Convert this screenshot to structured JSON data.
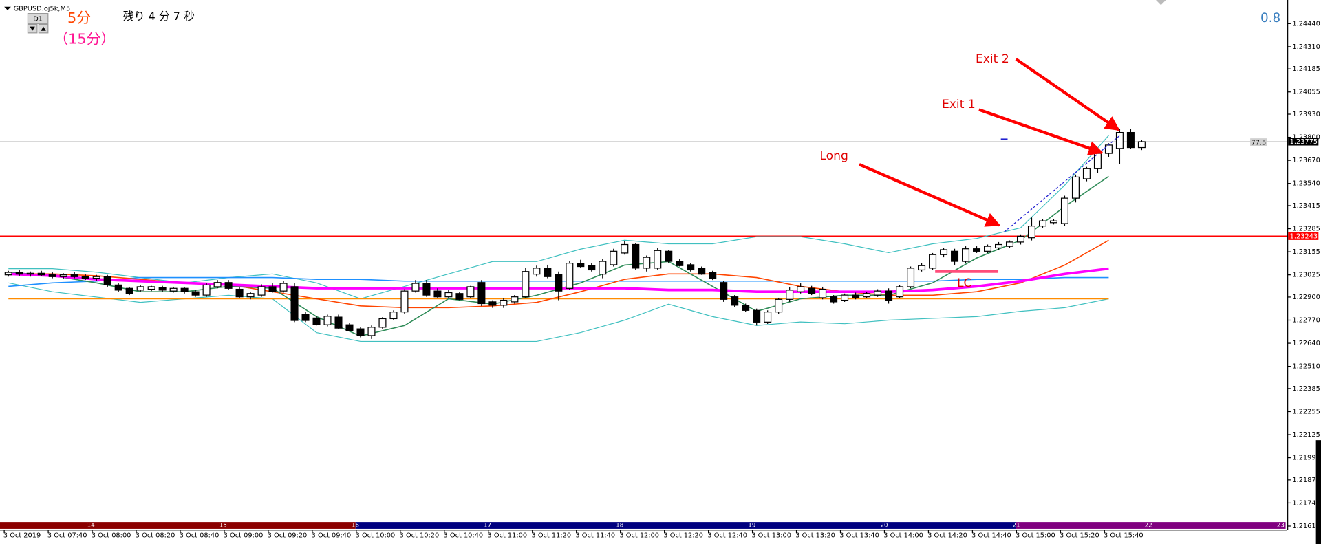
{
  "header": {
    "symbol": "GBPUSD.oj5k,M5",
    "period_button": "D1",
    "timeframe": "5分",
    "timeframe_sub": "（15分）",
    "countdown": "残り 4 分 7 秒",
    "spread": "0.8",
    "level_label": "77.5"
  },
  "chart_data": {
    "type": "candlestick",
    "categories": [
      "3 Oct 2019",
      null,
      null,
      null,
      "3 Oct 07:40",
      null,
      null,
      null,
      "3 Oct 08:00",
      null,
      null,
      null,
      "3 Oct 08:20",
      null,
      null,
      null,
      "3 Oct 08:40",
      null,
      null,
      null,
      "3 Oct 09:00",
      null,
      null,
      null,
      "3 Oct 09:20",
      null,
      null,
      null,
      "3 Oct 09:40",
      null,
      null,
      null,
      "3 Oct 10:00",
      null,
      null,
      null,
      "3 Oct 10:20",
      null,
      null,
      null,
      "3 Oct 10:40",
      null,
      null,
      null,
      "3 Oct 11:00",
      null,
      null,
      null,
      "3 Oct 11:20",
      null,
      null,
      null,
      "3 Oct 11:40",
      null,
      null,
      null,
      "3 Oct 12:00",
      null,
      null,
      null,
      "3 Oct 12:20",
      null,
      null,
      null,
      "3 Oct 12:40",
      null,
      null,
      null,
      "3 Oct 13:00",
      null,
      null,
      null,
      "3 Oct 13:20",
      null,
      null,
      null,
      "3 Oct 13:40",
      null,
      null,
      null,
      "3 Oct 14:00",
      null,
      null,
      null,
      "3 Oct 14:20",
      null,
      null,
      null,
      "3 Oct 14:40",
      null,
      null,
      null,
      "3 Oct 15:00",
      null,
      null,
      null,
      "3 Oct 15:20",
      null,
      null,
      null,
      "3 Oct 15:40",
      null,
      null,
      null
    ],
    "values": [
      [
        1.23025,
        1.23048,
        1.23015,
        1.23039
      ],
      [
        1.23039,
        1.23053,
        1.2302,
        1.23029
      ],
      [
        1.23029,
        1.23044,
        1.23015,
        1.23034
      ],
      [
        1.23034,
        1.23048,
        1.2302,
        1.23025
      ],
      [
        1.23025,
        1.23039,
        1.23006,
        1.23015
      ],
      [
        1.23015,
        1.23034,
        1.23001,
        1.23025
      ],
      [
        1.23025,
        1.23039,
        1.23006,
        1.23015
      ],
      [
        1.23015,
        1.23029,
        1.22996,
        1.23006
      ],
      [
        1.23006,
        1.23025,
        1.22991,
        1.23015
      ],
      [
        1.23015,
        1.23025,
        1.22958,
        1.22968
      ],
      [
        1.22968,
        1.22977,
        1.2293,
        1.22939
      ],
      [
        1.22949,
        1.22958,
        1.22911,
        1.2292
      ],
      [
        1.22939,
        1.22968,
        1.2293,
        1.22958
      ],
      [
        1.22944,
        1.22963,
        1.22934,
        1.22958
      ],
      [
        1.22953,
        1.22963,
        1.2293,
        1.22939
      ],
      [
        1.22934,
        1.22958,
        1.22925,
        1.22949
      ],
      [
        1.22949,
        1.22958,
        1.2292,
        1.2293
      ],
      [
        1.2293,
        1.22939,
        1.22901,
        1.22911
      ],
      [
        1.22911,
        1.22977,
        1.22901,
        1.22968
      ],
      [
        1.22958,
        1.22996,
        1.22949,
        1.22982
      ],
      [
        1.22982,
        1.22996,
        1.22939,
        1.22949
      ],
      [
        1.22944,
        1.22958,
        1.22892,
        1.22901
      ],
      [
        1.22901,
        1.2293,
        1.22887,
        1.2292
      ],
      [
        1.22911,
        1.22972,
        1.22901,
        1.22958
      ],
      [
        1.22958,
        1.22977,
        1.22925,
        1.2293
      ],
      [
        1.22934,
        1.22991,
        1.22925,
        1.22977
      ],
      [
        1.22958,
        1.22977,
        1.22759,
        1.22768
      ],
      [
        1.22801,
        1.22816,
        1.22759,
        1.22768
      ],
      [
        1.22782,
        1.22792,
        1.2274,
        1.22744
      ],
      [
        1.22744,
        1.22801,
        1.22735,
        1.22792
      ],
      [
        1.22787,
        1.22801,
        1.22721,
        1.22725
      ],
      [
        1.22744,
        1.22754,
        1.22706,
        1.22711
      ],
      [
        1.22721,
        1.2273,
        1.22673,
        1.22683
      ],
      [
        1.22683,
        1.2274,
        1.22664,
        1.2273
      ],
      [
        1.2273,
        1.22787,
        1.22721,
        1.22778
      ],
      [
        1.22778,
        1.22825,
        1.22768,
        1.22816
      ],
      [
        1.22816,
        1.22944,
        1.22806,
        1.22934
      ],
      [
        1.22934,
        1.22996,
        1.22925,
        1.22977
      ],
      [
        1.22977,
        1.22996,
        1.22901,
        1.22911
      ],
      [
        1.22934,
        1.22949,
        1.22896,
        1.22901
      ],
      [
        1.22901,
        1.22939,
        1.22892,
        1.22925
      ],
      [
        1.2292,
        1.2293,
        1.22882,
        1.22887
      ],
      [
        1.22901,
        1.22963,
        1.22892,
        1.22958
      ],
      [
        1.22982,
        1.22996,
        1.22849,
        1.22863
      ],
      [
        1.22873,
        1.22882,
        1.22839,
        1.22854
      ],
      [
        1.22854,
        1.22892,
        1.22839,
        1.22882
      ],
      [
        1.22873,
        1.22911,
        1.22863,
        1.22901
      ],
      [
        1.22901,
        1.23063,
        1.22896,
        1.23044
      ],
      [
        1.23029,
        1.23077,
        1.23015,
        1.23063
      ],
      [
        1.23063,
        1.23082,
        1.23006,
        1.23015
      ],
      [
        1.23029,
        1.23044,
        1.22882,
        1.22934
      ],
      [
        1.22949,
        1.23101,
        1.22939,
        1.23091
      ],
      [
        1.23091,
        1.2311,
        1.23063,
        1.23072
      ],
      [
        1.23077,
        1.23091,
        1.23044,
        1.23053
      ],
      [
        1.23029,
        1.23115,
        1.23006,
        1.23101
      ],
      [
        1.23082,
        1.23172,
        1.23072,
        1.23158
      ],
      [
        1.23148,
        1.23215,
        1.23139,
        1.23196
      ],
      [
        1.23196,
        1.23205,
        1.23053,
        1.23063
      ],
      [
        1.23063,
        1.23134,
        1.23044,
        1.23124
      ],
      [
        1.23063,
        1.23177,
        1.23053,
        1.23162
      ],
      [
        1.23158,
        1.23167,
        1.23091,
        1.23101
      ],
      [
        1.23101,
        1.23115,
        1.23072,
        1.23077
      ],
      [
        1.23082,
        1.23091,
        1.23044,
        1.23053
      ],
      [
        1.23063,
        1.23072,
        1.23025,
        1.23029
      ],
      [
        1.23039,
        1.23048,
        1.22996,
        1.23006
      ],
      [
        1.22982,
        1.22991,
        1.22873,
        1.22887
      ],
      [
        1.22901,
        1.22911,
        1.22844,
        1.22854
      ],
      [
        1.22854,
        1.22863,
        1.22816,
        1.22825
      ],
      [
        1.22825,
        1.22835,
        1.2274,
        1.22759
      ],
      [
        1.22759,
        1.22825,
        1.22749,
        1.22816
      ],
      [
        1.22816,
        1.22896,
        1.22806,
        1.22887
      ],
      [
        1.22887,
        1.22958,
        1.22873,
        1.22939
      ],
      [
        1.2293,
        1.22977,
        1.2292,
        1.22958
      ],
      [
        1.22949,
        1.22963,
        1.22911,
        1.2292
      ],
      [
        1.22896,
        1.22958,
        1.22887,
        1.22944
      ],
      [
        1.22901,
        1.22911,
        1.22863,
        1.22873
      ],
      [
        1.22882,
        1.2292,
        1.22873,
        1.22911
      ],
      [
        1.22911,
        1.22925,
        1.22887,
        1.22896
      ],
      [
        1.22901,
        1.2293,
        1.22892,
        1.2292
      ],
      [
        1.22911,
        1.22944,
        1.22901,
        1.22934
      ],
      [
        1.22934,
        1.22949,
        1.22863,
        1.22882
      ],
      [
        1.22901,
        1.22968,
        1.22892,
        1.22958
      ],
      [
        1.22958,
        1.23072,
        1.22949,
        1.23063
      ],
      [
        1.23053,
        1.23091,
        1.23044,
        1.23077
      ],
      [
        1.23063,
        1.23148,
        1.23053,
        1.23139
      ],
      [
        1.23139,
        1.23177,
        1.23124,
        1.23167
      ],
      [
        1.23158,
        1.23172,
        1.23082,
        1.23101
      ],
      [
        1.23101,
        1.23186,
        1.23091,
        1.23172
      ],
      [
        1.23172,
        1.23186,
        1.23148,
        1.23158
      ],
      [
        1.23158,
        1.23196,
        1.23148,
        1.23186
      ],
      [
        1.23177,
        1.2321,
        1.23167,
        1.23196
      ],
      [
        1.23186,
        1.23219,
        1.23177,
        1.2321
      ],
      [
        1.2321,
        1.23253,
        1.23196,
        1.23243
      ],
      [
        1.23234,
        1.23348,
        1.23219,
        1.233
      ],
      [
        1.233,
        1.23338,
        1.23291,
        1.23329
      ],
      [
        1.23319,
        1.23338,
        1.23309,
        1.23329
      ],
      [
        1.23314,
        1.23471,
        1.233,
        1.23457
      ],
      [
        1.23457,
        1.2359,
        1.23433,
        1.23576
      ],
      [
        1.23566,
        1.23633,
        1.23552,
        1.23623
      ],
      [
        1.23623,
        1.23728,
        1.23599,
        1.23709
      ],
      [
        1.23709,
        1.23766,
        1.2369,
        1.23756
      ],
      [
        1.23737,
        1.23846,
        1.23648,
        1.23827
      ],
      [
        1.23827,
        1.23846,
        1.23733,
        1.23742
      ],
      [
        1.23742,
        1.23785,
        1.23728,
        1.23775
      ]
    ],
    "overlays": [
      {
        "color": "#40c0c0",
        "width": 1,
        "values": [
          1.2306,
          1.2306,
          1.2304,
          1.2301,
          1.2298,
          1.2301,
          1.2303,
          1.2298,
          1.2289,
          1.2296,
          1.2303,
          1.231,
          1.231,
          1.2317,
          1.2322,
          1.232,
          1.232,
          1.2324,
          1.2324,
          1.232,
          1.2315,
          1.232,
          1.2323,
          1.2329,
          1.2353,
          1.2381
        ]
      },
      {
        "color": "#40c0c0",
        "width": 1,
        "values": [
          1.2298,
          1.2293,
          1.229,
          1.2287,
          1.2289,
          1.2291,
          1.2289,
          1.227,
          1.2265,
          1.2265,
          1.2265,
          1.2265,
          1.2265,
          1.227,
          1.2277,
          1.2286,
          1.2279,
          1.2274,
          1.2276,
          1.2275,
          1.2277,
          1.2278,
          1.2279,
          1.2282,
          1.2284,
          1.2289
        ]
      },
      {
        "color": "#ff8c00",
        "width": 1.3,
        "values": [
          1.2289,
          1.2289,
          1.2289,
          1.2289,
          1.2289,
          1.2289,
          1.2289,
          1.2289,
          1.2289,
          1.2289,
          1.2289,
          1.2289,
          1.2289,
          1.2289,
          1.2289,
          1.2289,
          1.2289,
          1.2289,
          1.2289,
          1.2289,
          1.2289,
          1.2289,
          1.2289,
          1.2289,
          1.2289,
          1.2289
        ]
      },
      {
        "color": "#1e90ff",
        "width": 1.3,
        "values": [
          1.2296,
          1.2298,
          1.2299,
          1.2301,
          1.2301,
          1.2301,
          1.2301,
          1.23,
          1.23,
          1.2299,
          1.2299,
          1.2299,
          1.2299,
          1.2299,
          1.2299,
          1.2299,
          1.2299,
          1.2299,
          1.2299,
          1.2299,
          1.2299,
          1.2299,
          1.23,
          1.23,
          1.2301,
          1.2301
        ]
      },
      {
        "color": "#ff4500",
        "width": 1.3,
        "values": [
          1.2303,
          1.2303,
          1.2302,
          1.23,
          1.2298,
          1.2297,
          1.2293,
          1.2289,
          1.2285,
          1.2284,
          1.2284,
          1.2285,
          1.2287,
          1.2293,
          1.23,
          1.2303,
          1.2303,
          1.2301,
          1.2296,
          1.2293,
          1.2291,
          1.2291,
          1.2293,
          1.2298,
          1.2308,
          1.2322
        ]
      },
      {
        "color": "#2e8b57",
        "width": 1.3,
        "values": [
          1.2304,
          1.2302,
          1.2298,
          1.2293,
          1.2293,
          1.2296,
          1.2295,
          1.2279,
          1.2268,
          1.2274,
          1.2289,
          1.2286,
          1.2291,
          1.2298,
          1.2308,
          1.231,
          1.2296,
          1.2282,
          1.2289,
          1.2291,
          1.2291,
          1.2298,
          1.2312,
          1.2322,
          1.2341,
          1.2358
        ]
      },
      {
        "color": "#ff00ff",
        "width": 3,
        "values": [
          1.2303,
          1.2302,
          1.23,
          1.2299,
          1.2298,
          1.2297,
          1.2296,
          1.2295,
          1.2295,
          1.2295,
          1.2295,
          1.2295,
          1.2295,
          1.2295,
          1.2295,
          1.2294,
          1.2294,
          1.2293,
          1.2293,
          1.2293,
          1.2293,
          1.2294,
          1.2296,
          1.2299,
          1.2303,
          1.2306
        ]
      }
    ],
    "hlines": [
      {
        "value": 1.23775,
        "color": "#c0c0c0",
        "label_color": "#000000"
      },
      {
        "value": 1.23243,
        "color": "#ff0000",
        "label_color": "#ff0000"
      }
    ],
    "ylim": [
      1.2159,
      1.24573
    ],
    "yticks": [
      {
        "value": 1.2444,
        "label": "1.24440"
      },
      {
        "value": 1.2431,
        "label": "1.24310"
      },
      1.24185,
      1.24055,
      {
        "value": 1.2393,
        "label": "1.23930"
      },
      {
        "value": 1.238,
        "label": "1.23800"
      },
      {
        "value": 1.2367,
        "label": "1.23670"
      },
      {
        "value": 1.2354,
        "label": "1.23540"
      },
      1.23415,
      1.23285,
      1.23155,
      1.23025,
      {
        "value": 1.229,
        "label": "1.22900"
      },
      {
        "value": 1.2277,
        "label": "1.22770"
      },
      {
        "value": 1.2264,
        "label": "1.22640"
      },
      {
        "value": 1.2251,
        "label": "1.22510"
      },
      1.22385,
      1.22255,
      1.22125,
      1.21995,
      {
        "value": 1.2187,
        "label": "1.21870"
      },
      {
        "value": 1.2174,
        "label": "1.21740"
      },
      {
        "value": 1.2161,
        "label": "1.21610"
      }
    ],
    "session_labels": [
      "14",
      "15",
      "16",
      "17",
      "18",
      "19",
      "20",
      "21",
      "22",
      "23"
    ],
    "annotations": [
      "Exit 2",
      "Exit 1",
      "Long",
      "LC"
    ]
  }
}
